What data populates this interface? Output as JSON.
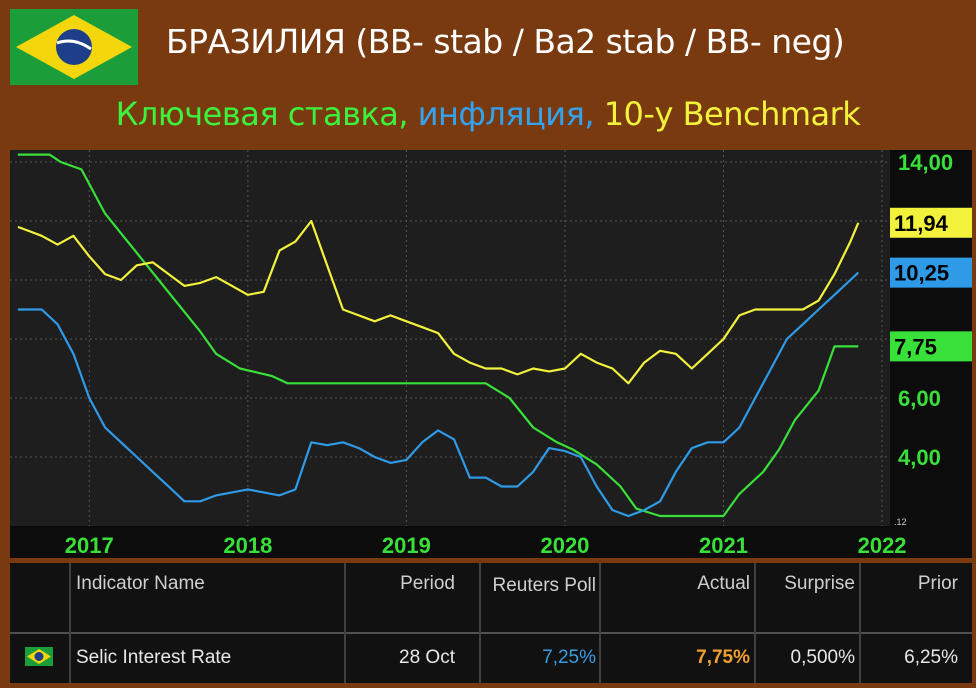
{
  "header": {
    "title": "БРАЗИЛИЯ (BB- stab / Ba2 stab / BB- neg)",
    "subtitle_parts": [
      "Ключевая ставка, ",
      "инфляция, ",
      "10-y Benchmark"
    ],
    "subtitle_colors": [
      "#3cf23c",
      "#33a3f0",
      "#f2f23c"
    ]
  },
  "chart_data": {
    "type": "line",
    "x_ticks": [
      "2017",
      "2018",
      "2019",
      "2020",
      "2021",
      "2022"
    ],
    "y_ticks": [
      "4,00",
      "6,00",
      "14,00"
    ],
    "ylim": [
      2.0,
      14.0
    ],
    "corner_label": ".12",
    "series": [
      {
        "color": "#39e039",
        "x": [
          2016.55,
          2016.75,
          2016.82,
          2016.95,
          2017.1,
          2017.25,
          2017.4,
          2017.55,
          2017.7,
          2017.8,
          2017.95,
          2018.15,
          2018.25,
          2019.5,
          2019.65,
          2019.8,
          2019.95,
          2020.05,
          2020.2,
          2020.35,
          2020.45,
          2020.6,
          2021.0,
          2021.1,
          2021.25,
          2021.35,
          2021.45,
          2021.6,
          2021.7,
          2021.8,
          2021.85
        ],
        "y": [
          14.25,
          14.25,
          14.0,
          13.75,
          12.25,
          11.25,
          10.25,
          9.25,
          8.25,
          7.5,
          7.0,
          6.75,
          6.5,
          6.5,
          6.0,
          5.0,
          4.5,
          4.25,
          3.75,
          3.0,
          2.25,
          2.0,
          2.0,
          2.75,
          3.5,
          4.25,
          5.25,
          6.25,
          7.75,
          7.75,
          7.75
        ]
      },
      {
        "color": "#f2f23c",
        "x": [
          2016.55,
          2016.6,
          2016.7,
          2016.8,
          2016.9,
          2017.0,
          2017.1,
          2017.2,
          2017.3,
          2017.4,
          2017.5,
          2017.6,
          2017.7,
          2017.8,
          2017.9,
          2018.0,
          2018.1,
          2018.2,
          2018.3,
          2018.4,
          2018.5,
          2018.6,
          2018.7,
          2018.8,
          2018.9,
          2019.0,
          2019.1,
          2019.2,
          2019.3,
          2019.4,
          2019.5,
          2019.6,
          2019.7,
          2019.8,
          2019.9,
          2020.0,
          2020.1,
          2020.2,
          2020.3,
          2020.4,
          2020.5,
          2020.6,
          2020.7,
          2020.8,
          2020.9,
          2021.0,
          2021.1,
          2021.2,
          2021.3,
          2021.4,
          2021.5,
          2021.6,
          2021.7,
          2021.8,
          2021.85
        ],
        "y": [
          11.8,
          11.7,
          11.5,
          11.2,
          11.5,
          10.8,
          10.2,
          10.0,
          10.5,
          10.6,
          10.2,
          9.8,
          9.9,
          10.1,
          9.8,
          9.5,
          9.6,
          11.0,
          11.3,
          12.0,
          10.5,
          9.0,
          8.8,
          8.6,
          8.8,
          8.6,
          8.4,
          8.2,
          7.5,
          7.2,
          7.0,
          7.0,
          6.8,
          7.0,
          6.9,
          7.0,
          7.5,
          7.2,
          7.0,
          6.5,
          7.2,
          7.6,
          7.5,
          7.0,
          7.5,
          8.0,
          8.8,
          9.0,
          9.0,
          9.0,
          9.0,
          9.3,
          10.2,
          11.3,
          11.94
        ]
      },
      {
        "color": "#2f9be8",
        "x": [
          2016.55,
          2016.7,
          2016.8,
          2016.9,
          2017.0,
          2017.1,
          2017.2,
          2017.3,
          2017.4,
          2017.5,
          2017.6,
          2017.7,
          2017.8,
          2017.9,
          2018.0,
          2018.1,
          2018.2,
          2018.3,
          2018.4,
          2018.5,
          2018.6,
          2018.7,
          2018.8,
          2018.9,
          2019.0,
          2019.1,
          2019.2,
          2019.3,
          2019.4,
          2019.5,
          2019.6,
          2019.7,
          2019.8,
          2019.9,
          2020.0,
          2020.1,
          2020.2,
          2020.3,
          2020.4,
          2020.5,
          2020.6,
          2020.7,
          2020.8,
          2020.9,
          2021.0,
          2021.1,
          2021.2,
          2021.3,
          2021.4,
          2021.5,
          2021.6,
          2021.7,
          2021.8,
          2021.85
        ],
        "y": [
          9.0,
          9.0,
          8.5,
          7.5,
          6.0,
          5.0,
          4.5,
          4.0,
          3.5,
          3.0,
          2.5,
          2.5,
          2.7,
          2.8,
          2.9,
          2.8,
          2.7,
          2.9,
          4.5,
          4.4,
          4.5,
          4.3,
          4.0,
          3.8,
          3.9,
          4.5,
          4.9,
          4.6,
          3.3,
          3.3,
          3.0,
          3.0,
          3.5,
          4.3,
          4.2,
          4.0,
          3.0,
          2.2,
          2.0,
          2.2,
          2.5,
          3.5,
          4.3,
          4.5,
          4.5,
          5.0,
          6.0,
          7.0,
          8.0,
          8.5,
          9.0,
          9.5,
          10.0,
          10.25
        ]
      }
    ],
    "badges": [
      {
        "label": "11,94",
        "value": 11.94,
        "bg": "#f2f23c"
      },
      {
        "label": "10,25",
        "value": 10.25,
        "bg": "#2f9be8"
      },
      {
        "label": "7,75",
        "value": 7.75,
        "bg": "#39e039"
      }
    ]
  },
  "table": {
    "headers": [
      "Indicator Name",
      "Period",
      "Reuters Poll",
      "Actual",
      "Surprise",
      "Prior"
    ],
    "row": {
      "name": "Selic Interest Rate",
      "period": "28 Oct",
      "poll": "7,25%",
      "actual": "7,75%",
      "surprise": "0,500%",
      "prior": "6,25%"
    },
    "colors": {
      "poll": "#3a9de0",
      "actual": "#f0a030"
    }
  }
}
